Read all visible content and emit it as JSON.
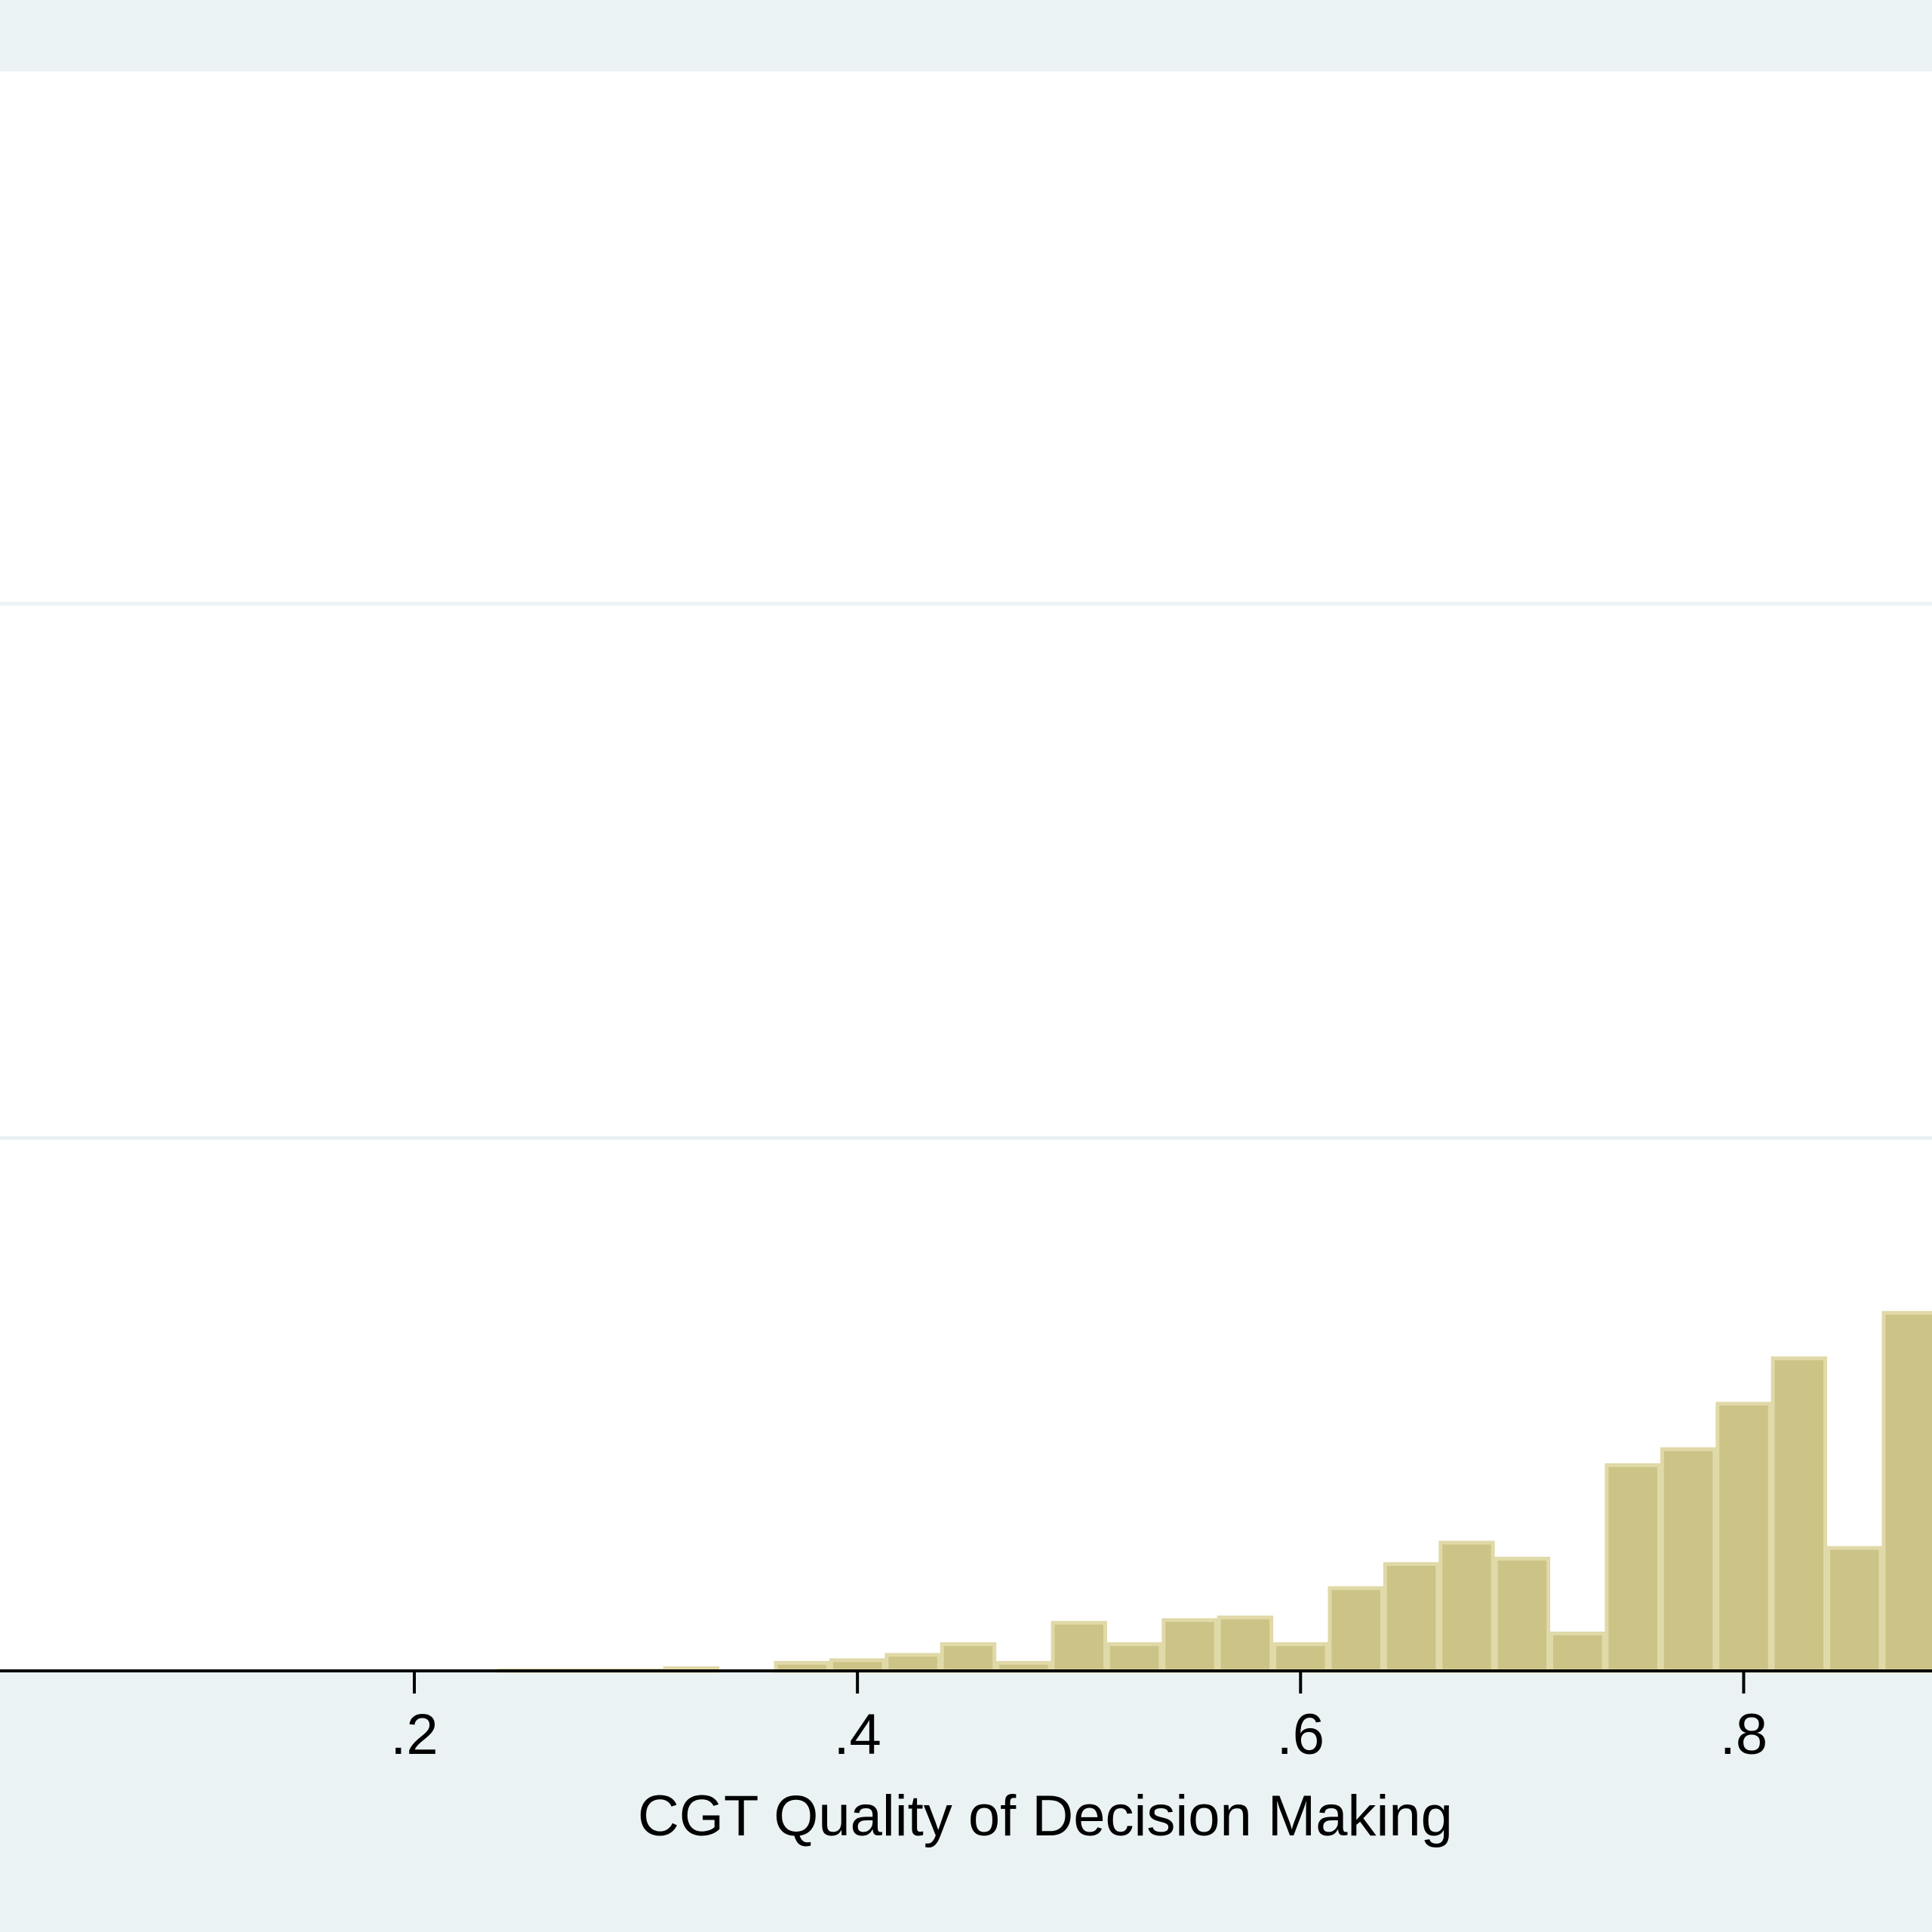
{
  "colors": {
    "outer_background": "#eaf2f3",
    "plot_background": "#ffffff",
    "gridline": "#eaf2f3",
    "bar_fill": "#ccc386",
    "bar_outline": "#e0d9a8",
    "axis": "#000000"
  },
  "chart_data": {
    "type": "bar",
    "title": "",
    "xlabel": "CGT Quality of Decision Making",
    "ylabel": "",
    "x_ticks": [
      0.2,
      0.4,
      0.6,
      0.8
    ],
    "x_tick_labels": [
      ".2",
      ".4",
      ".6",
      ".8"
    ],
    "xlim": [
      0.013,
      0.885
    ],
    "ylim": [
      0,
      3
    ],
    "y_gridlines": [
      1,
      2,
      3
    ],
    "bin_width": 0.025,
    "bins": [
      {
        "x": 0.25,
        "y": 0.001
      },
      {
        "x": 0.275,
        "y": 0.001
      },
      {
        "x": 0.3,
        "y": 0.001
      },
      {
        "x": 0.325,
        "y": 0.005
      },
      {
        "x": 0.375,
        "y": 0.015
      },
      {
        "x": 0.4,
        "y": 0.02
      },
      {
        "x": 0.425,
        "y": 0.03
      },
      {
        "x": 0.45,
        "y": 0.05
      },
      {
        "x": 0.475,
        "y": 0.015
      },
      {
        "x": 0.5,
        "y": 0.09
      },
      {
        "x": 0.525,
        "y": 0.05
      },
      {
        "x": 0.55,
        "y": 0.095
      },
      {
        "x": 0.575,
        "y": 0.1
      },
      {
        "x": 0.6,
        "y": 0.05
      },
      {
        "x": 0.625,
        "y": 0.155
      },
      {
        "x": 0.65,
        "y": 0.2
      },
      {
        "x": 0.675,
        "y": 0.24
      },
      {
        "x": 0.7,
        "y": 0.21
      },
      {
        "x": 0.725,
        "y": 0.07
      },
      {
        "x": 0.75,
        "y": 0.385
      },
      {
        "x": 0.775,
        "y": 0.415
      },
      {
        "x": 0.8,
        "y": 0.5
      },
      {
        "x": 0.825,
        "y": 0.585
      },
      {
        "x": 0.85,
        "y": 0.23
      },
      {
        "x": 0.875,
        "y": 0.67
      }
    ],
    "grid": true,
    "legend": "none"
  }
}
